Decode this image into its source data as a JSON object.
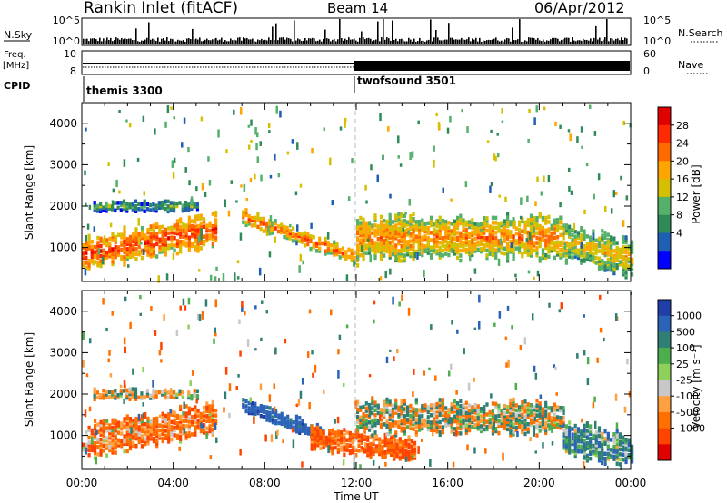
{
  "header": {
    "title": "Rankin Inlet (fitACF)",
    "beam": "Beam 14",
    "date": "06/Apr/2012"
  },
  "top_panels": {
    "nsky_label": "N.Sky",
    "nsky_ticks": [
      "10^5",
      "10^0"
    ],
    "nsearch_label": "N.Search",
    "nsearch_ticks": [
      "10^5",
      "10^0"
    ],
    "freq_label_1": "Freq.",
    "freq_label_2": "[MHz]",
    "freq_ticks": [
      "10",
      "8"
    ],
    "nave_label": "Nave",
    "nave_ticks": [
      "60",
      "0"
    ],
    "cpid_label": "CPID",
    "cpid_modes": [
      {
        "name": "themis 3300",
        "start_hour": 0
      },
      {
        "name": "twofsound 3501",
        "start_hour": 12
      }
    ]
  },
  "x_axis": {
    "label": "Time UT",
    "range_hours": [
      0,
      24
    ],
    "ticks": [
      "00:00",
      "04:00",
      "08:00",
      "12:00",
      "16:00",
      "20:00",
      "00:00"
    ]
  },
  "chart_data": [
    {
      "type": "heatmap",
      "name": "power",
      "ylabel": "Slant Range [km]",
      "ylim": [
        180,
        4500
      ],
      "yticks": [
        1000,
        2000,
        3000,
        4000
      ],
      "xlim": [
        0,
        24
      ],
      "colorbar": {
        "label": "Power [dB]",
        "ticks": [
          "28",
          "24",
          "20",
          "16",
          "12",
          "8",
          "4"
        ],
        "range": [
          0,
          30
        ],
        "colors": [
          "#0000ff",
          "#1e5fb4",
          "#2e8b57",
          "#55b06a",
          "#d4c000",
          "#ffa500",
          "#ff6a00",
          "#ff2a00",
          "#e00000"
        ]
      },
      "features": [
        {
          "t_start": 0.0,
          "t_end": 5.8,
          "range_center_start": 900,
          "range_center_end": 1500,
          "range_width": 700,
          "power": 26
        },
        {
          "t_start": 0.5,
          "t_end": 5.0,
          "range_center_start": 2050,
          "range_center_end": 2050,
          "range_width": 200,
          "power": 12
        },
        {
          "t_start": 7.0,
          "t_end": 12.0,
          "range_center_start": 1800,
          "range_center_end": 800,
          "range_width": 300,
          "power": 24
        },
        {
          "t_start": 12.0,
          "t_end": 21.0,
          "range_center_start": 1300,
          "range_center_end": 1300,
          "range_width": 900,
          "power": 22
        },
        {
          "t_start": 21.0,
          "t_end": 24.0,
          "range_center_start": 1200,
          "range_center_end": 800,
          "range_width": 800,
          "power": 18
        }
      ]
    },
    {
      "type": "heatmap",
      "name": "velocity",
      "ylabel": "Slant Range [km]",
      "ylim": [
        180,
        4500
      ],
      "yticks": [
        1000,
        2000,
        3000,
        4000
      ],
      "xlim": [
        0,
        24
      ],
      "colorbar": {
        "label": "Velocity [m s⁻¹]",
        "ticks": [
          "1000",
          "500",
          "100",
          "25",
          "-25",
          "-100",
          "-500",
          "-1000"
        ],
        "colors": [
          "#1f3ea8",
          "#2a63b8",
          "#2f7f75",
          "#4cae4c",
          "#8fd05a",
          "#c8c8c8",
          "#ffa040",
          "#ff7000",
          "#ff4400",
          "#e00000"
        ]
      },
      "features": [
        {
          "t_start": 0.0,
          "t_end": 5.8,
          "range_center_start": 900,
          "range_center_end": 1500,
          "range_width": 700,
          "velocity": -200
        },
        {
          "t_start": 0.5,
          "t_end": 5.0,
          "range_center_start": 2050,
          "range_center_end": 2050,
          "range_width": 200,
          "velocity": 0
        },
        {
          "t_start": 7.0,
          "t_end": 10.5,
          "range_center_start": 1800,
          "range_center_end": 1100,
          "range_width": 300,
          "velocity": 500
        },
        {
          "t_start": 10.0,
          "t_end": 14.5,
          "range_center_start": 1000,
          "range_center_end": 700,
          "range_width": 500,
          "velocity": -300
        },
        {
          "t_start": 12.0,
          "t_end": 21.0,
          "range_center_start": 1500,
          "range_center_end": 1500,
          "range_width": 700,
          "velocity": 0
        },
        {
          "t_start": 21.0,
          "t_end": 24.0,
          "range_center_start": 1000,
          "range_center_end": 700,
          "range_width": 700,
          "velocity": 200
        }
      ]
    }
  ]
}
